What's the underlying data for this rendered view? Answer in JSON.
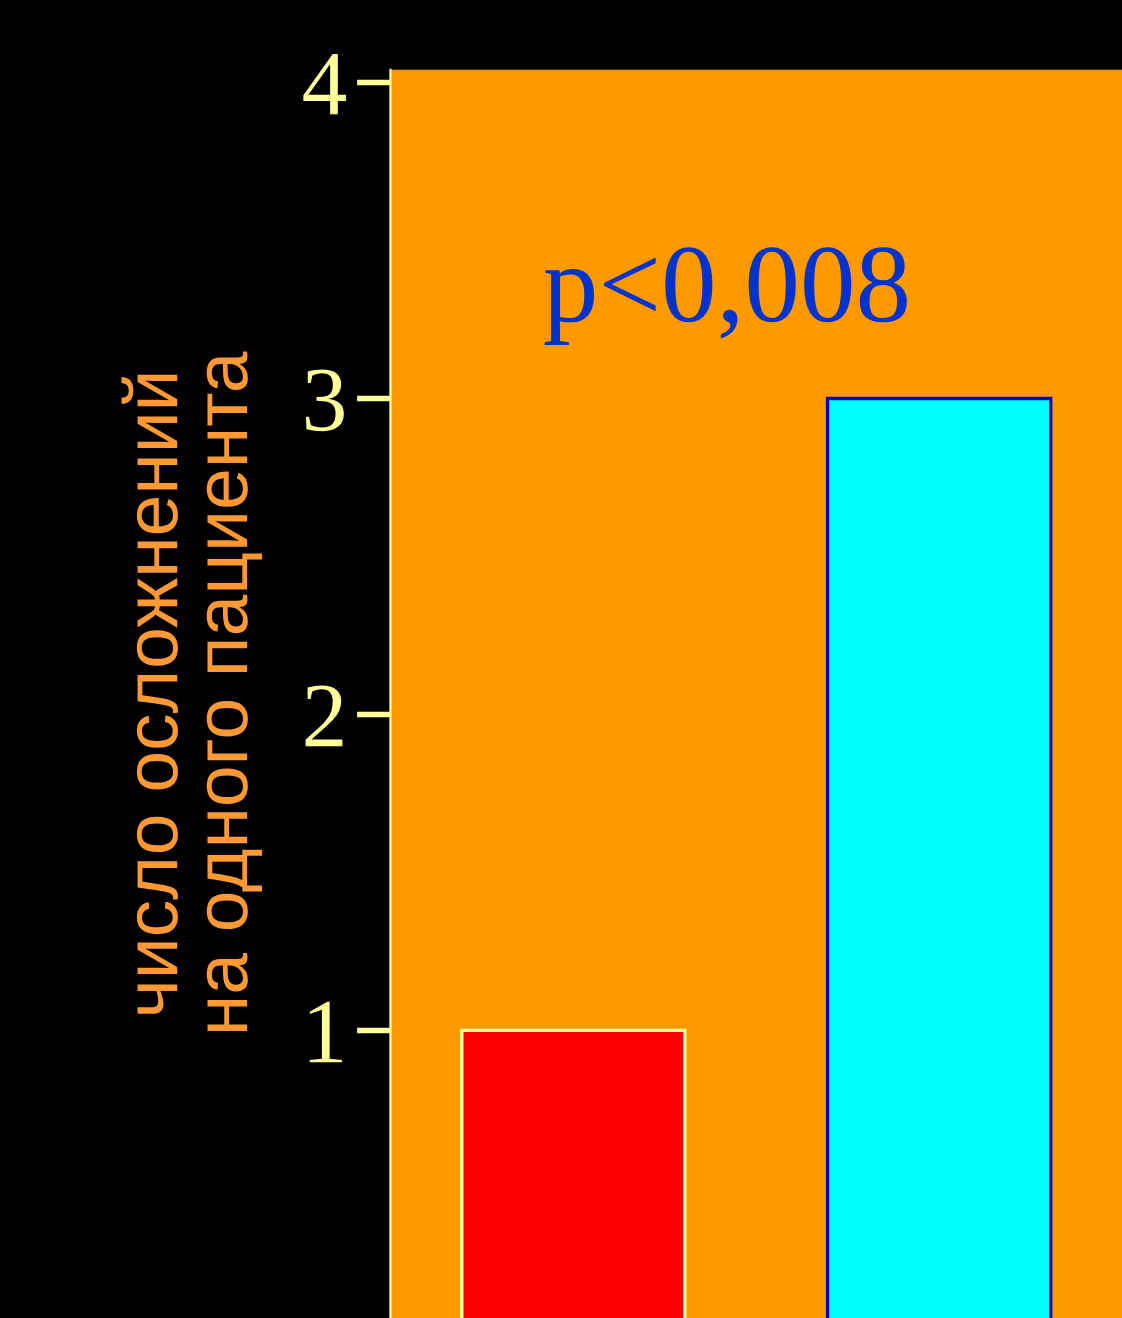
{
  "chart_data": {
    "type": "bar",
    "ylabel": "число осложнений\nна одного пациента",
    "categories": [
      null,
      null
    ],
    "values": [
      1.0,
      3.0
    ],
    "colors": [
      "#ff0000",
      "#00ffff"
    ],
    "ylim": [
      0.09,
      4.04
    ],
    "yticks": [
      1,
      2,
      3,
      4
    ],
    "grid": false,
    "annotations": [
      "p<0,008"
    ]
  }
}
